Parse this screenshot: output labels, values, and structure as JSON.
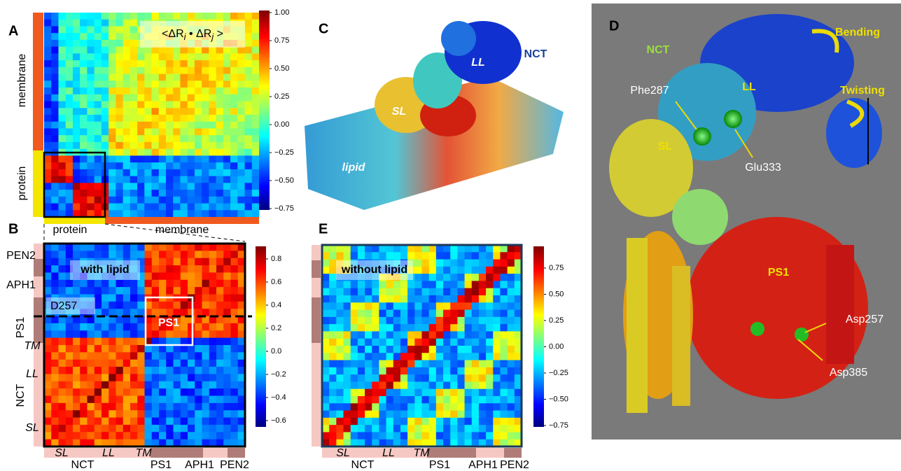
{
  "panels": {
    "A": {
      "label": "A",
      "title": [
        "<ΔR",
        "i",
        " • ΔR",
        "j",
        " >"
      ],
      "left_labels": [
        "membrane",
        "protein"
      ],
      "bottom_labels": [
        "protein",
        "membrane"
      ],
      "colorbar_ticks": [
        "1.00",
        "0.75",
        "0.50",
        "0.25",
        "0.00",
        "−0.25",
        "−0.50",
        "−0.75"
      ]
    },
    "B": {
      "label": "B",
      "annotations": [
        "with lipid",
        "D257",
        "PS1"
      ],
      "left_labels": [
        "PEN2",
        "APH1",
        "PS1",
        "NCT",
        "TM",
        "LL",
        "SL"
      ],
      "bottom_sub_labels": [
        "SL",
        "LL",
        "TM"
      ],
      "bottom_labels": [
        "NCT",
        "PS1",
        "APH1",
        "PEN2"
      ],
      "colorbar_ticks": [
        "0.8",
        "0.6",
        "0.4",
        "0.2",
        "0.0",
        "−0.2",
        "−0.4",
        "−0.6"
      ]
    },
    "C": {
      "label": "C",
      "annotations": [
        "NCT",
        "LL",
        "SL",
        "lipid"
      ]
    },
    "D": {
      "label": "D",
      "annotations": [
        "NCT",
        "Bending",
        "Twisting",
        "LL",
        "Phe287",
        "SL",
        "Glu333",
        "PS1",
        "Asp257",
        "Asp385"
      ]
    },
    "E": {
      "label": "E",
      "annotations": [
        "without lipid"
      ],
      "bottom_sub_labels": [
        "SL",
        "LL",
        "TM"
      ],
      "bottom_labels": [
        "NCT",
        "PS1",
        "APH1",
        "PEN2"
      ],
      "colorbar_ticks": [
        "0.75",
        "0.50",
        "0.25",
        "0.00",
        "−0.25",
        "−0.50",
        "−0.75"
      ]
    }
  }
}
